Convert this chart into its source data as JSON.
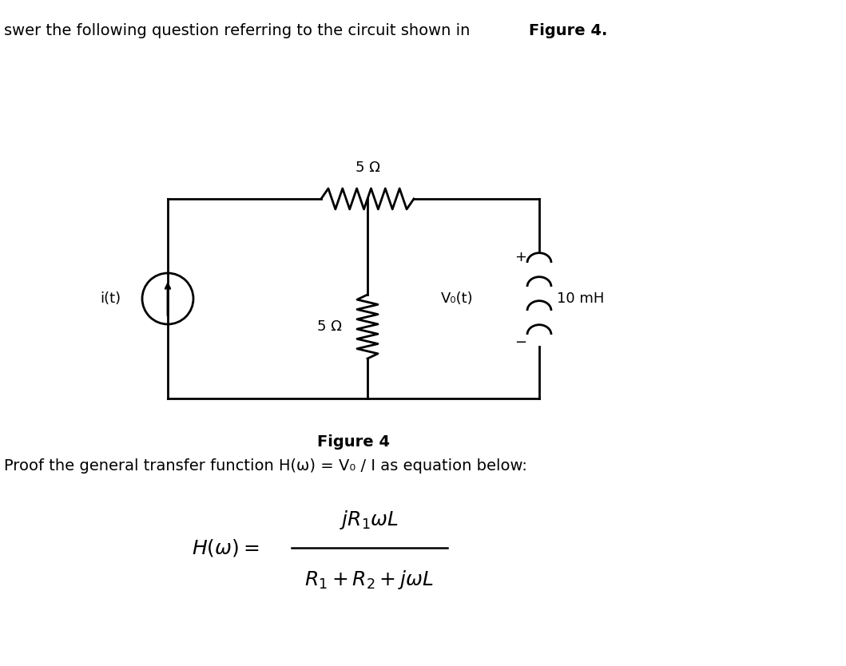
{
  "title_normal": "swer the following question referring to the circuit shown in ",
  "title_bold": "Figure 4.",
  "fig_label": "Figure 4",
  "proof_text": "Proof the general transfer function H(ω) = V₀ / I as equation below:",
  "R1_label": "5 Ω",
  "R2_label": "5 Ω",
  "L_label": "10 mH",
  "source_label": "i(t)",
  "vo_label": "V₀(t)",
  "bg_color": "#ffffff",
  "line_color": "#000000",
  "fontsize_main": 14,
  "fontsize_label": 13,
  "fontsize_formula": 18
}
